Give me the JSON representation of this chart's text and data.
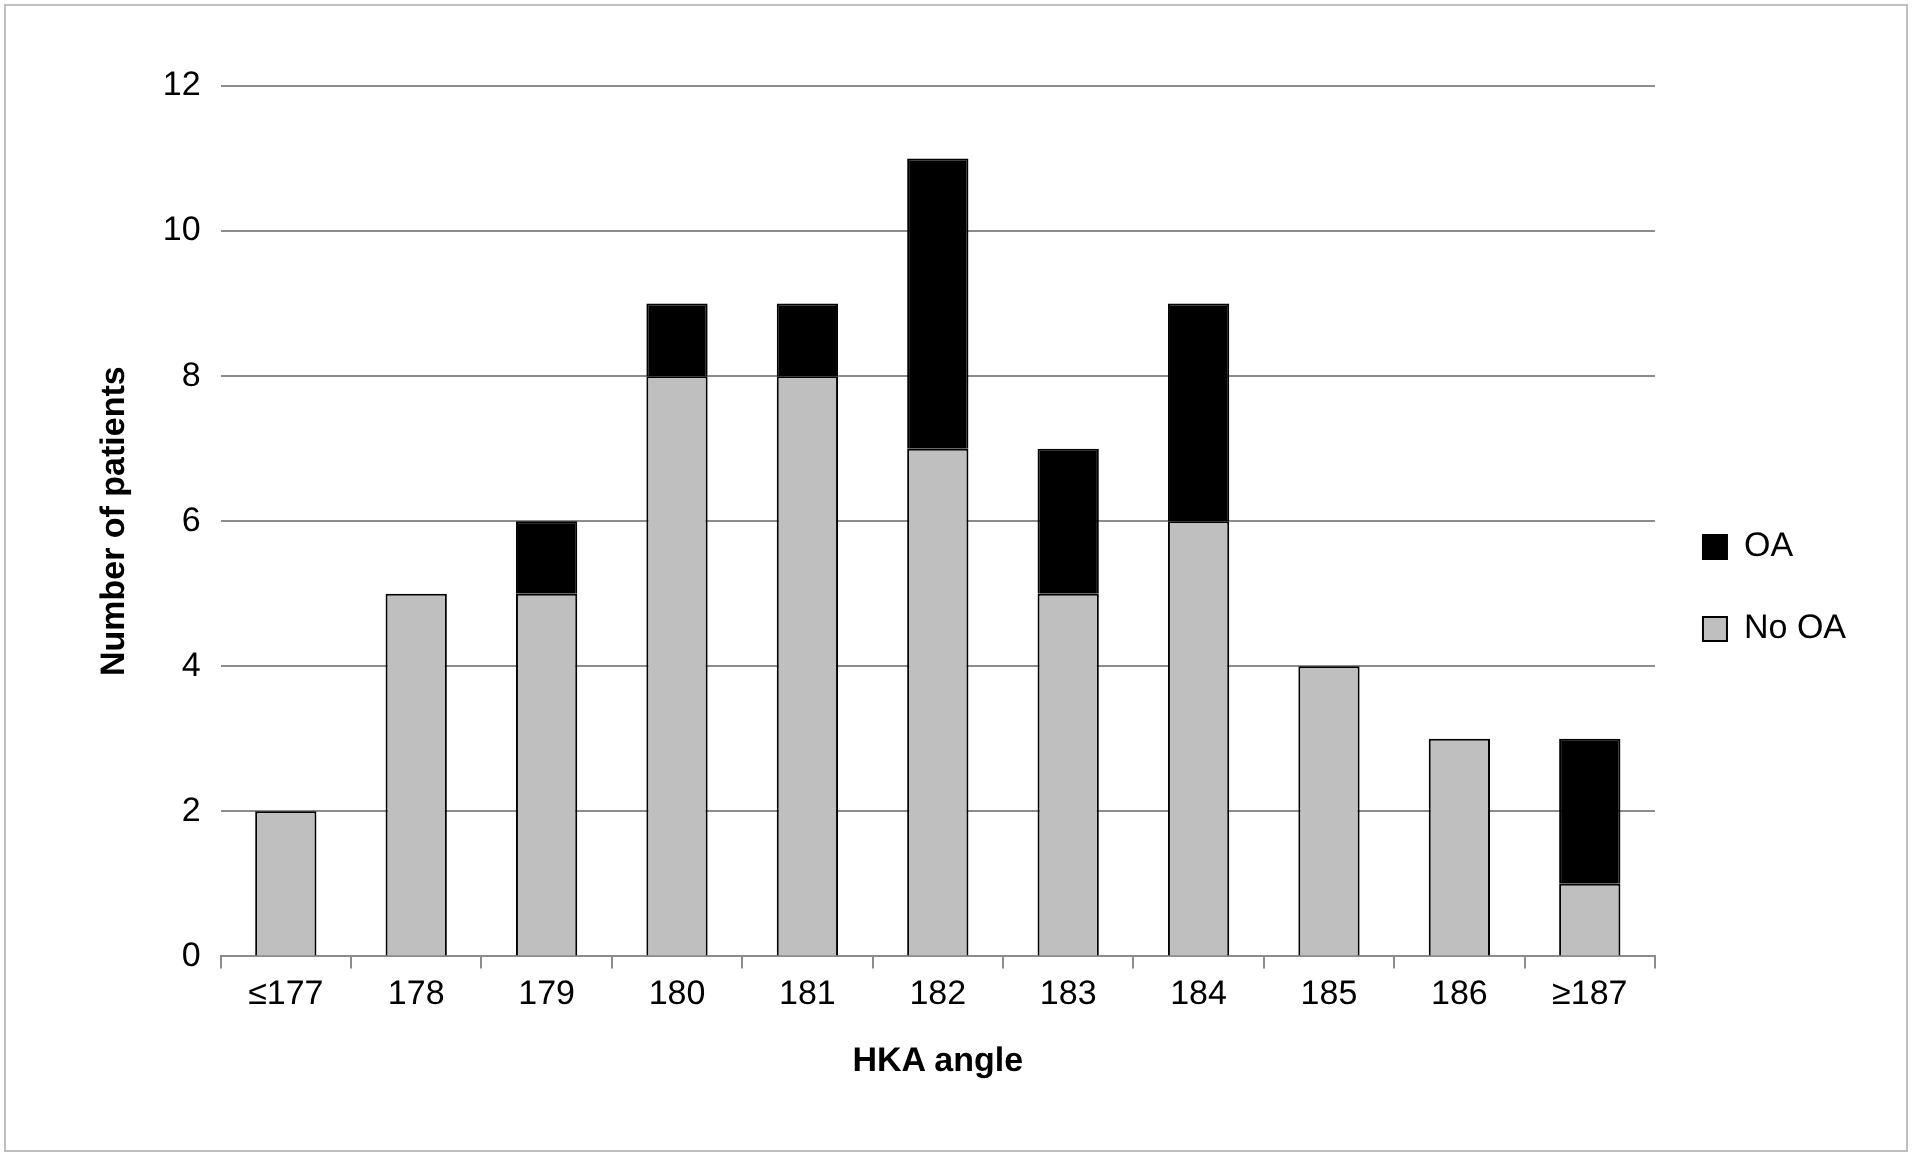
{
  "chart_data": {
    "type": "bar",
    "stacked": true,
    "xlabel": "HKA angle",
    "ylabel": "Number of patients",
    "categories": [
      "≤177",
      "178",
      "179",
      "180",
      "181",
      "182",
      "183",
      "184",
      "185",
      "186",
      "≥187"
    ],
    "series": [
      {
        "name": "No OA",
        "color": "#bfbfbf",
        "values": [
          2,
          5,
          5,
          8,
          8,
          7,
          5,
          6,
          4,
          3,
          1
        ]
      },
      {
        "name": "OA",
        "color": "#000000",
        "values": [
          0,
          0,
          1,
          1,
          1,
          4,
          2,
          3,
          0,
          0,
          2
        ]
      }
    ],
    "ylim": [
      0,
      12
    ],
    "yticks": [
      0,
      2,
      4,
      6,
      8,
      10,
      12
    ],
    "grid": "y",
    "legend": "right"
  }
}
